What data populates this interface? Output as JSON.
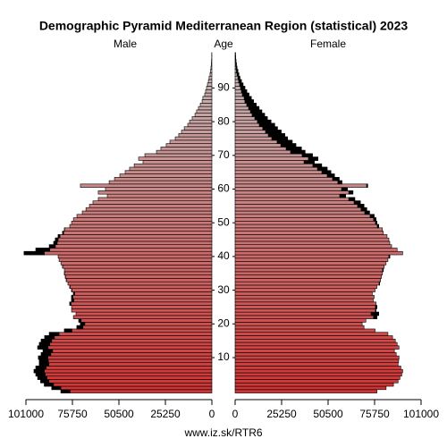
{
  "chart_data": {
    "type": "pyramid",
    "title": "Demographic Pyramid Mediterranean Region (statistical) 2023",
    "y_label": "Age",
    "source": "www.iz.sk/RTR6",
    "categories": [
      null,
      null,
      null,
      null,
      null,
      null,
      null,
      null,
      null,
      null,
      "10",
      null,
      null,
      null,
      null,
      null,
      null,
      null,
      null,
      null,
      "20",
      null,
      null,
      null,
      null,
      null,
      null,
      null,
      null,
      null,
      "30",
      null,
      null,
      null,
      null,
      null,
      null,
      null,
      null,
      null,
      "40",
      null,
      null,
      null,
      null,
      null,
      null,
      null,
      null,
      null,
      "50",
      null,
      null,
      null,
      null,
      null,
      null,
      null,
      null,
      null,
      "60",
      null,
      null,
      null,
      null,
      null,
      null,
      null,
      null,
      null,
      "70",
      null,
      null,
      null,
      null,
      null,
      null,
      null,
      null,
      null,
      "80",
      null,
      null,
      null,
      null,
      null,
      null,
      null,
      null,
      null,
      "90",
      null,
      null,
      null,
      null,
      null,
      null,
      null,
      null,
      null,
      null
    ],
    "xlim": [
      0,
      101000
    ],
    "xticks": [
      0,
      25250,
      50500,
      75750,
      101000
    ],
    "color_gradient": [
      "#d03434",
      "#c4bcbc"
    ],
    "surplus_color": "#000000",
    "series": [
      {
        "name": "Male",
        "values": [
          82000,
          87000,
          91000,
          93000,
          94600,
          95600,
          96600,
          95600,
          93700,
          93700,
          94200,
          92700,
          91700,
          94600,
          93700,
          92700,
          90800,
          88300,
          80100,
          73300,
          71400,
          72300,
          75200,
          73800,
          76200,
          76200,
          77200,
          76200,
          76200,
          75200,
          76200,
          77200,
          78200,
          79100,
          79600,
          80100,
          80100,
          81100,
          82000,
          83000,
          83500,
          102000,
          95600,
          88300,
          85900,
          85000,
          83500,
          81100,
          80100,
          77200,
          76200,
          75200,
          73300,
          70400,
          68400,
          66500,
          64600,
          61700,
          56800,
          61700,
          57800,
          71400,
          55800,
          52900,
          50000,
          47100,
          44700,
          42200,
          37400,
          39800,
          36400,
          30100,
          27700,
          24800,
          22800,
          19900,
          18000,
          16500,
          15000,
          13100,
          12100,
          10700,
          9200,
          8300,
          7300,
          6300,
          5300,
          4900,
          3900,
          3400,
          2900,
          2400,
          1900,
          1500,
          1000,
          700,
          500,
          300,
          200,
          100,
          100
        ]
      },
      {
        "name": "Female",
        "values": [
          77000,
          82000,
          86000,
          88500,
          89500,
          90500,
          91000,
          90000,
          88500,
          88800,
          89000,
          87500,
          86500,
          89000,
          88000,
          87000,
          85500,
          83000,
          76000,
          70000,
          69000,
          71000,
          77000,
          78000,
          76500,
          77000,
          76500,
          75000,
          75500,
          74500,
          76000,
          77000,
          78500,
          79000,
          79500,
          80000,
          80500,
          81000,
          82000,
          83000,
          84000,
          91000,
          88000,
          85000,
          84000,
          83500,
          82500,
          80500,
          80000,
          78000,
          77000,
          76500,
          75500,
          73000,
          71500,
          70000,
          68000,
          65000,
          60000,
          64000,
          61000,
          72000,
          58000,
          56500,
          54000,
          52000,
          50000,
          47000,
          43000,
          45000,
          42000,
          38000,
          36000,
          33000,
          31000,
          28500,
          27000,
          25000,
          23000,
          21500,
          19500,
          17500,
          16000,
          14500,
          13000,
          11500,
          10000,
          8800,
          7500,
          6300,
          5300,
          4300,
          3400,
          2600,
          2000,
          1500,
          1000,
          700,
          450,
          300,
          200
        ]
      }
    ]
  }
}
